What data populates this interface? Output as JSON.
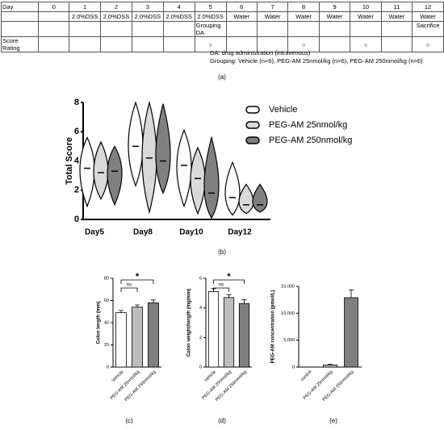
{
  "schedule": {
    "rows": [
      [
        "Day",
        0,
        1,
        2,
        3,
        4,
        5,
        6,
        7,
        8,
        9,
        10,
        11,
        12
      ],
      [
        null,
        null,
        "2.0%DSS",
        "2.0%DSS",
        "2.0%DSS",
        "2.0%DSS",
        "2.0%DSS",
        "Water",
        "Water",
        "Water",
        "Water",
        "Water",
        "Water",
        "Water"
      ],
      [
        null,
        null,
        null,
        null,
        null,
        null,
        "Grouping DA",
        null,
        null,
        null,
        null,
        null,
        null,
        "Sacrifice"
      ],
      [
        "Score Rating",
        null,
        null,
        null,
        null,
        null,
        "○",
        null,
        null,
        "○",
        null,
        "○",
        null,
        "○"
      ]
    ],
    "notes": [
      "DA: drug administration (intravenous)",
      "Grouping: Vehicle (n=6), PEG-AM 25nmol/kg (n=6), PEG-AM 250nmol/kg (n=6)"
    ],
    "label": "(a)"
  },
  "chart_data": [
    {
      "type": "violin",
      "label": "(b)",
      "ylabel": "Total Score",
      "categories": [
        "Day5",
        "Day8",
        "Day10",
        "Day12"
      ],
      "series": [
        {
          "name": "Vehicle",
          "color": "#ffffff",
          "values": [
            3.5,
            5,
            3.7,
            1.5
          ],
          "min": [
            0.9,
            2.3,
            0.9,
            0.3
          ],
          "max": [
            5.6,
            8,
            6.1,
            3.9
          ]
        },
        {
          "name": "PEG-AM 25nmol/kg",
          "color": "#d9d9d9",
          "values": [
            3.2,
            4.2,
            2.8,
            1
          ],
          "min": [
            1.4,
            0.5,
            0.4,
            0.4
          ],
          "max": [
            5.3,
            8,
            4.9,
            2.4
          ]
        },
        {
          "name": "PEG-AM 250nmol/kg",
          "color": "#808080",
          "values": [
            3.3,
            4,
            1.8,
            1
          ],
          "min": [
            1,
            1.8,
            0.1,
            0.5
          ],
          "max": [
            5,
            7.9,
            5.6,
            2.4
          ]
        }
      ],
      "ylim": [
        0,
        8
      ],
      "yticks": [
        0,
        2,
        4,
        6,
        8
      ]
    },
    {
      "type": "bar",
      "label": "(c)",
      "ylabel": "Colon length (mm)",
      "categories": [
        "Vehicle",
        "PEG-AM 25nmol/kg",
        "PEG-AM 250nmol/kg"
      ],
      "values": [
        49,
        54,
        58
      ],
      "errors": [
        2,
        2,
        2.5
      ],
      "colors": [
        "#ffffff",
        "#bdbdbd",
        "#7f7f7f"
      ],
      "ylim": [
        0,
        80
      ],
      "yticks": [
        0,
        20,
        40,
        60,
        80
      ],
      "annotations": [
        "ns",
        "*"
      ]
    },
    {
      "type": "bar",
      "label": "(d)",
      "ylabel": "Colon weight/length (mg/mm)",
      "categories": [
        "Vehicle",
        "PEG-AM 25nmol/kg",
        "PEG-AM 250nmol/kg"
      ],
      "values": [
        5.1,
        4.7,
        4.3
      ],
      "errors": [
        0.2,
        0.2,
        0.25
      ],
      "colors": [
        "#ffffff",
        "#bdbdbd",
        "#7f7f7f"
      ],
      "ylim": [
        0,
        6
      ],
      "yticks": [
        0,
        2,
        4,
        6
      ],
      "annotations": [
        "ns",
        "*"
      ]
    },
    {
      "type": "bar",
      "label": "(e)",
      "ylabel": "PEG-AM concentration (pmol/L)",
      "categories": [
        "control",
        "PEG-AM 25nmol/kg",
        "PEG-AM 250nmol/kg"
      ],
      "values": [
        0,
        400,
        12900
      ],
      "errors": [
        0,
        100,
        1400
      ],
      "colors": [
        "#ffffff",
        "#bdbdbd",
        "#7f7f7f"
      ],
      "ylim": [
        0,
        15000
      ],
      "yticks": [
        0,
        {
          "value": 5000,
          "label": "5,000"
        },
        {
          "value": 10000,
          "label": "10,000"
        },
        {
          "value": 15000,
          "label": "15,000"
        }
      ]
    }
  ]
}
